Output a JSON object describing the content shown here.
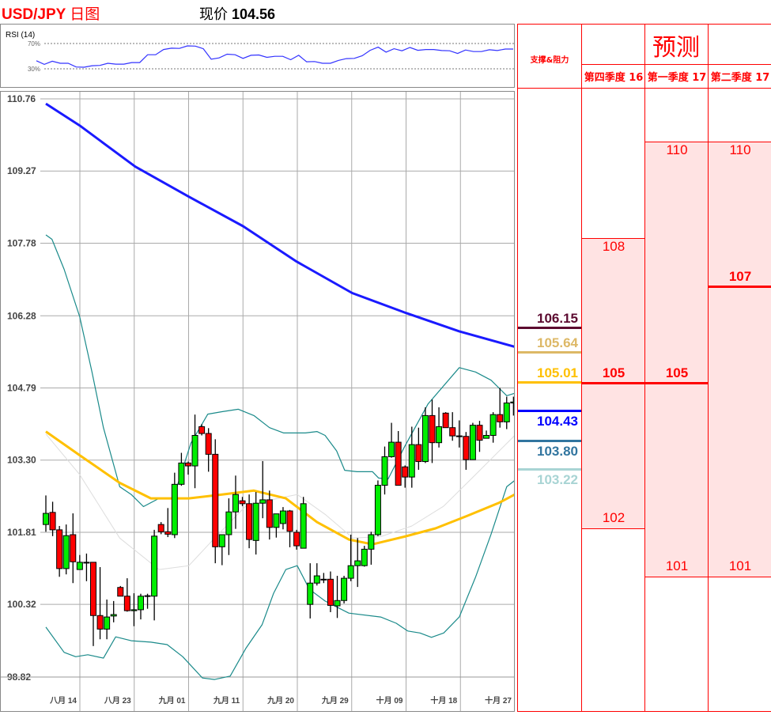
{
  "header": {
    "title": "USD/JPY",
    "title_suffix": "日图",
    "price_label": "现价",
    "price_value": "104.56"
  },
  "colors": {
    "up": "#00ee00",
    "down": "#ff0000",
    "ma_long": "#1a1aff",
    "ma_short": "#ffc000",
    "bollinger": "#1a8a8a",
    "bollinger_mid": "#dddddd",
    "rsi": "#3333ff",
    "accent": "#ff0000",
    "forecast_band": "#ffe3e3"
  },
  "rsi": {
    "label": "RSI (14)",
    "levels": [
      {
        "value": 70,
        "label": "70%"
      },
      {
        "value": 30,
        "label": "30%"
      }
    ],
    "values": [
      42.8,
      37.0,
      42.0,
      38.7,
      38.7,
      32.9,
      32.5,
      34.9,
      35.4,
      38.7,
      37.4,
      37.4,
      39.9,
      39.9,
      52.3,
      52.3,
      60.5,
      62.6,
      62.2,
      66.3,
      65.9,
      61.8,
      45.3,
      47.3,
      53.1,
      52.3,
      46.5,
      51.4,
      51.9,
      48.1,
      49.8,
      49.8,
      44.4,
      51.4,
      41.1,
      41.5,
      38.7,
      38.7,
      43.2,
      46.1,
      46.5,
      50.6,
      59.3,
      64.2,
      56.4,
      61.8,
      58.5,
      63.8,
      59.3,
      60.5,
      60.5,
      58.9,
      58.5,
      54.3,
      59.7,
      57.2,
      57.2,
      60.1,
      58.9,
      61.3,
      61.3
    ]
  },
  "chart_data": {
    "type": "candlestick",
    "ylim": [
      98.82,
      110.76
    ],
    "y_ticks": [
      "110.76",
      "109.27",
      "107.78",
      "106.28",
      "104.79",
      "103.30",
      "101.81",
      "100.32",
      "98.82"
    ],
    "x_ticks": [
      "八月 14",
      "八月 23",
      "九月 01",
      "九月 11",
      "九月 20",
      "九月 29",
      "十月 09",
      "十月 18",
      "十月 27"
    ],
    "grid": true,
    "candles_ohlc": [
      [
        101.97,
        102.57,
        101.82,
        102.2
      ],
      [
        102.22,
        102.44,
        101.73,
        101.86
      ],
      [
        101.86,
        101.94,
        100.89,
        101.06
      ],
      [
        101.06,
        101.97,
        100.94,
        101.74
      ],
      [
        101.76,
        102.2,
        100.76,
        101.2
      ],
      [
        101.04,
        101.34,
        101.04,
        101.19
      ],
      [
        101.19,
        101.37,
        100.8,
        101.18
      ],
      [
        101.19,
        101.19,
        99.46,
        100.09
      ],
      [
        100.09,
        101.09,
        99.6,
        99.81
      ],
      [
        99.81,
        100.42,
        99.6,
        100.06
      ],
      [
        100.08,
        100.39,
        99.95,
        100.11
      ],
      [
        100.67,
        100.7,
        100.49,
        100.49
      ],
      [
        100.49,
        100.86,
        100.17,
        100.19
      ],
      [
        100.19,
        100.55,
        99.87,
        100.21
      ],
      [
        100.21,
        100.54,
        100.01,
        100.49
      ],
      [
        100.49,
        100.54,
        100.23,
        100.5
      ],
      [
        100.49,
        101.86,
        99.99,
        101.73
      ],
      [
        101.97,
        102.02,
        101.77,
        101.82
      ],
      [
        101.82,
        102.31,
        101.71,
        101.77
      ],
      [
        101.76,
        103.04,
        101.69,
        102.8
      ],
      [
        102.8,
        103.45,
        102.77,
        103.24
      ],
      [
        103.24,
        103.27,
        103.0,
        103.18
      ],
      [
        103.18,
        104.24,
        102.72,
        103.81
      ],
      [
        103.99,
        104.04,
        103.81,
        103.85
      ],
      [
        103.85,
        103.96,
        103.06,
        103.42
      ],
      [
        103.42,
        103.73,
        101.17,
        101.51
      ],
      [
        101.51,
        101.76,
        101.13,
        101.76
      ],
      [
        101.76,
        102.51,
        101.34,
        102.23
      ],
      [
        102.23,
        102.98,
        101.88,
        102.59
      ],
      [
        102.46,
        102.54,
        102.35,
        102.4
      ],
      [
        102.4,
        102.59,
        101.48,
        101.66
      ],
      [
        101.64,
        102.64,
        101.35,
        102.41
      ],
      [
        102.41,
        103.28,
        102.1,
        102.48
      ],
      [
        102.48,
        102.67,
        101.66,
        101.91
      ],
      [
        101.91,
        102.19,
        101.7,
        102.19
      ],
      [
        101.99,
        102.33,
        101.87,
        102.25
      ],
      [
        102.25,
        102.27,
        101.5,
        101.83
      ],
      [
        101.81,
        101.86,
        101.45,
        101.53
      ],
      [
        101.48,
        102.54,
        101.48,
        102.4
      ],
      [
        100.32,
        101.17,
        100.03,
        100.76
      ],
      [
        100.76,
        101.17,
        100.71,
        100.91
      ],
      [
        100.84,
        100.97,
        100.76,
        100.84
      ],
      [
        100.84,
        101.0,
        100.16,
        100.3
      ],
      [
        100.29,
        100.91,
        100.04,
        100.4
      ],
      [
        100.4,
        100.91,
        100.34,
        100.86
      ],
      [
        100.86,
        101.76,
        100.8,
        101.12
      ],
      [
        101.12,
        101.69,
        100.68,
        101.22
      ],
      [
        101.12,
        101.53,
        101.1,
        101.46
      ],
      [
        101.46,
        101.82,
        101.14,
        101.76
      ],
      [
        101.76,
        102.88,
        101.73,
        102.78
      ],
      [
        102.78,
        103.58,
        102.59,
        103.37
      ],
      [
        103.37,
        104.07,
        103.35,
        103.67
      ],
      [
        103.67,
        103.9,
        102.78,
        102.78
      ],
      [
        103.16,
        103.19,
        102.73,
        102.95
      ],
      [
        102.95,
        103.99,
        102.73,
        103.62
      ],
      [
        103.62,
        103.97,
        103.1,
        103.27
      ],
      [
        103.27,
        104.39,
        103.24,
        104.22
      ],
      [
        104.22,
        104.55,
        103.24,
        103.66
      ],
      [
        103.66,
        104.39,
        103.56,
        103.99
      ],
      [
        104.27,
        104.29,
        103.97,
        103.97
      ],
      [
        103.97,
        104.29,
        103.7,
        103.8
      ],
      [
        103.8,
        104.12,
        103.56,
        103.79
      ],
      [
        103.79,
        103.88,
        103.1,
        103.31
      ],
      [
        103.31,
        104.07,
        103.31,
        104.02
      ],
      [
        104.02,
        104.11,
        103.47,
        103.71
      ],
      [
        103.75,
        103.91,
        103.75,
        103.81
      ],
      [
        103.81,
        104.29,
        103.66,
        104.24
      ],
      [
        104.24,
        104.79,
        103.97,
        104.09
      ],
      [
        104.09,
        104.61,
        103.94,
        104.48
      ],
      [
        104.48,
        104.61,
        104.22,
        104.5
      ]
    ],
    "lines": [
      {
        "role": "ma_long",
        "points": [
          [
            0,
            110.66
          ],
          [
            5,
            110.21
          ],
          [
            13.2,
            109.36
          ],
          [
            21.1,
            108.74
          ],
          [
            29.1,
            108.13
          ],
          [
            37,
            107.4
          ],
          [
            45.2,
            106.75
          ],
          [
            53.1,
            106.34
          ],
          [
            61,
            105.96
          ],
          [
            69.2,
            105.64
          ]
        ]
      },
      {
        "role": "ma_short",
        "points": [
          [
            0,
            103.89
          ],
          [
            5,
            103.4
          ],
          [
            10.9,
            102.83
          ],
          [
            15.5,
            102.51
          ],
          [
            21.1,
            102.51
          ],
          [
            26,
            102.59
          ],
          [
            30.7,
            102.67
          ],
          [
            35.4,
            102.51
          ],
          [
            40,
            102.02
          ],
          [
            44.7,
            101.66
          ],
          [
            48.2,
            101.56
          ],
          [
            52.9,
            101.72
          ],
          [
            57.5,
            101.89
          ],
          [
            62.2,
            102.15
          ],
          [
            66.9,
            102.42
          ],
          [
            69.2,
            102.59
          ]
        ]
      },
      {
        "role": "bollinger_mid",
        "points": [
          [
            0,
            103.84
          ],
          [
            5,
            103.0
          ],
          [
            10.9,
            101.69
          ],
          [
            16.7,
            101.04
          ],
          [
            21.1,
            101.12
          ],
          [
            24.9,
            101.69
          ],
          [
            29.5,
            102.35
          ],
          [
            34.2,
            102.51
          ],
          [
            37.1,
            102.59
          ],
          [
            41.2,
            102.18
          ],
          [
            45.3,
            101.69
          ],
          [
            49.4,
            101.72
          ],
          [
            54,
            101.94
          ],
          [
            58.7,
            102.35
          ],
          [
            63.4,
            103.0
          ],
          [
            69.2,
            103.81
          ]
        ]
      },
      {
        "role": "bollinger",
        "points": [
          [
            0,
            107.95
          ],
          [
            0.9,
            107.86
          ],
          [
            2.7,
            107.24
          ],
          [
            5,
            106.26
          ],
          [
            6.8,
            105.12
          ],
          [
            8.5,
            103.97
          ],
          [
            10.9,
            102.75
          ],
          [
            12.6,
            102.59
          ],
          [
            14.4,
            102.34
          ],
          [
            16.7,
            102.51
          ],
          [
            18.8,
            102.51
          ],
          [
            21.4,
            103.65
          ],
          [
            23.9,
            104.25
          ],
          [
            26,
            104.3
          ],
          [
            28.4,
            104.35
          ],
          [
            30.7,
            104.22
          ],
          [
            33,
            103.97
          ],
          [
            35.1,
            103.86
          ],
          [
            38.3,
            103.86
          ],
          [
            40,
            103.89
          ],
          [
            41.2,
            103.81
          ],
          [
            42.9,
            103.49
          ],
          [
            44.1,
            103.09
          ],
          [
            45.9,
            103.06
          ],
          [
            48.2,
            103.06
          ],
          [
            49.1,
            102.93
          ],
          [
            50.5,
            102.91
          ],
          [
            52.9,
            103.57
          ],
          [
            56.4,
            104.46
          ],
          [
            61,
            105.21
          ],
          [
            63.4,
            105.12
          ],
          [
            65.7,
            104.95
          ],
          [
            68,
            104.63
          ],
          [
            69.2,
            104.68
          ]
        ]
      },
      {
        "role": "bollinger",
        "points": [
          [
            0,
            99.85
          ],
          [
            2.7,
            99.33
          ],
          [
            4.4,
            99.24
          ],
          [
            6.2,
            99.28
          ],
          [
            8.5,
            99.21
          ],
          [
            10.3,
            99.65
          ],
          [
            12.6,
            99.57
          ],
          [
            15.5,
            99.54
          ],
          [
            17.9,
            99.49
          ],
          [
            20.2,
            99.24
          ],
          [
            23.1,
            98.8
          ],
          [
            24.9,
            98.77
          ],
          [
            27.2,
            98.84
          ],
          [
            29.5,
            99.41
          ],
          [
            31.9,
            99.9
          ],
          [
            33.6,
            100.55
          ],
          [
            35.4,
            101.04
          ],
          [
            37.1,
            101.12
          ],
          [
            38.9,
            100.63
          ],
          [
            41.2,
            100.39
          ],
          [
            44.7,
            100.14
          ],
          [
            49.4,
            100.06
          ],
          [
            51.7,
            99.93
          ],
          [
            53.4,
            99.77
          ],
          [
            55.2,
            99.73
          ],
          [
            56.9,
            99.64
          ],
          [
            58.7,
            99.73
          ],
          [
            61,
            100.06
          ],
          [
            63.4,
            100.88
          ],
          [
            65.7,
            101.77
          ],
          [
            68,
            102.75
          ],
          [
            69.2,
            102.88
          ]
        ]
      }
    ]
  },
  "table": {
    "support_header": "支撑&阻力",
    "forecast_header": "预测",
    "support_levels": [
      {
        "value": "106.15",
        "color": "#5c0a30"
      },
      {
        "value": "105.64",
        "color": "#ddb866"
      },
      {
        "value": "105.01",
        "color": "#ffc000"
      },
      {
        "value": "104.43",
        "color": "#0000ff"
      },
      {
        "value": "103.80",
        "color": "#31759f"
      },
      {
        "value": "103.22",
        "color": "#a8d4d4"
      }
    ],
    "forecasts": [
      {
        "period": "第四季度 16",
        "high": "108",
        "mid": "105",
        "low": "102"
      },
      {
        "period": "第一季度 17",
        "high": "110",
        "mid": "105",
        "low": "101"
      },
      {
        "period": "第二季度 17",
        "high": "110",
        "mid": "107",
        "low": "101"
      }
    ]
  }
}
